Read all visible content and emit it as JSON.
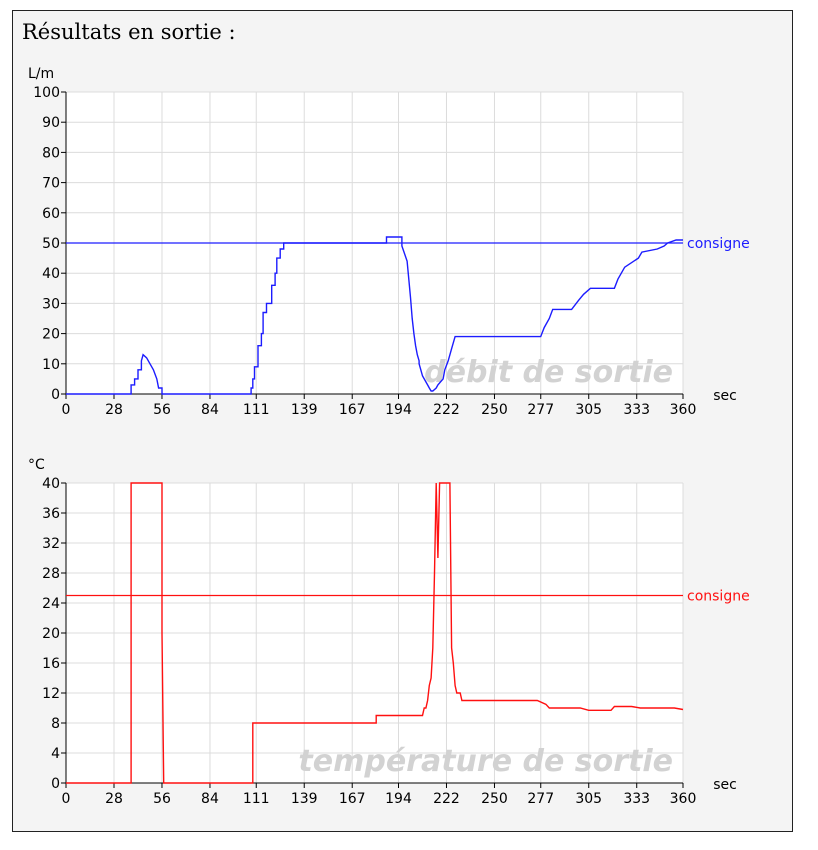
{
  "heading": "Résultats en sortie :",
  "chart_data": [
    {
      "type": "line",
      "title": "",
      "watermark": "débit de sortie",
      "ylabel": "L/m",
      "xlabel": "sec",
      "xlim": [
        0,
        360
      ],
      "ylim": [
        0,
        100
      ],
      "x_ticks": [
        0,
        28,
        56,
        84,
        111,
        139,
        167,
        194,
        222,
        250,
        277,
        305,
        333,
        360
      ],
      "y_ticks": [
        0,
        10,
        20,
        30,
        40,
        50,
        60,
        70,
        80,
        90,
        100
      ],
      "grid": true,
      "color": "#1c1cff",
      "reference_line": {
        "label": "consigne",
        "value": 50
      },
      "series": [
        {
          "x": [
            0,
            38,
            38,
            40,
            40,
            42,
            42,
            44,
            44,
            45,
            47,
            49,
            51,
            53,
            54,
            56,
            56,
            108,
            108,
            109,
            109,
            110,
            110,
            112,
            112,
            114,
            114,
            115,
            115,
            117,
            117,
            120,
            120,
            122,
            122,
            123,
            123,
            125,
            125,
            127,
            127,
            129,
            129,
            187,
            187,
            196,
            196,
            199,
            200,
            201,
            202,
            203,
            204,
            205,
            206,
            206,
            207,
            207,
            208,
            208,
            210,
            210,
            211,
            211,
            212,
            212,
            213,
            213,
            214,
            214,
            216,
            216,
            217,
            217,
            220,
            220,
            221,
            221,
            223,
            223,
            225,
            225,
            227,
            227,
            229,
            229,
            231,
            231,
            233,
            233,
            235,
            235,
            277,
            277,
            279,
            279,
            282,
            282,
            284,
            284,
            295,
            295,
            299,
            299,
            302,
            302,
            306,
            306,
            320,
            320,
            322,
            322,
            324,
            324,
            326,
            326,
            334,
            334,
            336,
            336,
            345,
            345,
            349,
            349,
            351,
            351,
            356,
            356,
            360
          ],
          "y": [
            0,
            0,
            3,
            3,
            5,
            5,
            8,
            8,
            11,
            13,
            12,
            10,
            8,
            5,
            2,
            2,
            0,
            0,
            2,
            2,
            5,
            5,
            9,
            9,
            16,
            16,
            20,
            20,
            27,
            27,
            30,
            30,
            36,
            36,
            40,
            40,
            45,
            45,
            48,
            48,
            50,
            50,
            50,
            50,
            52,
            52,
            49,
            44,
            38,
            32,
            25,
            20,
            16,
            13,
            11,
            10,
            8,
            8,
            6,
            6,
            4,
            4,
            3,
            3,
            2,
            2,
            1,
            1,
            1,
            1,
            2,
            2,
            3,
            3,
            5,
            5,
            8,
            8,
            11,
            11,
            15,
            15,
            19,
            19,
            19,
            19,
            19,
            19,
            19,
            19,
            19,
            19,
            19,
            19,
            22,
            22,
            25,
            25,
            28,
            28,
            28,
            28,
            31,
            31,
            33,
            33,
            35,
            35,
            35,
            35,
            38,
            38,
            40,
            40,
            42,
            42,
            45,
            45,
            47,
            47,
            48,
            48,
            49,
            49,
            50,
            50,
            51,
            51,
            51
          ]
        }
      ]
    },
    {
      "type": "line",
      "title": "",
      "watermark": "température de sortie",
      "ylabel": "°C",
      "xlabel": "sec",
      "xlim": [
        0,
        360
      ],
      "ylim": [
        0,
        40
      ],
      "x_ticks": [
        0,
        28,
        56,
        84,
        111,
        139,
        167,
        194,
        222,
        250,
        277,
        305,
        333,
        360
      ],
      "y_ticks": [
        0,
        4,
        8,
        12,
        16,
        20,
        24,
        28,
        32,
        36,
        40
      ],
      "grid": true,
      "color": "#ff1010",
      "reference_line": {
        "label": "consigne",
        "value": 25
      },
      "series": [
        {
          "x": [
            0,
            38,
            38,
            55,
            56,
            56,
            57,
            108,
            108,
            109,
            109,
            180,
            181,
            181,
            193,
            195,
            200,
            205,
            207,
            208,
            209,
            210,
            211,
            212,
            213,
            214,
            215,
            216,
            217,
            218,
            219,
            220,
            221,
            222,
            223,
            224,
            225,
            226,
            227,
            228,
            229,
            230,
            231,
            232,
            233,
            234,
            235,
            236,
            237,
            238,
            240,
            242,
            245,
            250,
            255,
            260,
            265,
            270,
            275,
            280,
            282,
            285,
            290,
            295,
            300,
            305,
            310,
            315,
            318,
            320,
            325,
            330,
            335,
            340,
            345,
            350,
            355,
            360
          ],
          "y": [
            0,
            0,
            40,
            40,
            40,
            20,
            0,
            0,
            0,
            0,
            8,
            8,
            8,
            9,
            9,
            9,
            9,
            9,
            9,
            9,
            10,
            10,
            11,
            13,
            14,
            18,
            28,
            40,
            30,
            40,
            40,
            40,
            40,
            40,
            40,
            40,
            18,
            16,
            13,
            12,
            12,
            12,
            11,
            11,
            11,
            11,
            11,
            11,
            11,
            11,
            11,
            11,
            11,
            11,
            11,
            11,
            11,
            11,
            11,
            10.5,
            10,
            10,
            10,
            10,
            10,
            9.7,
            9.7,
            9.7,
            9.7,
            10.2,
            10.2,
            10.2,
            10,
            10,
            10,
            10,
            10,
            9.8
          ]
        }
      ]
    }
  ]
}
